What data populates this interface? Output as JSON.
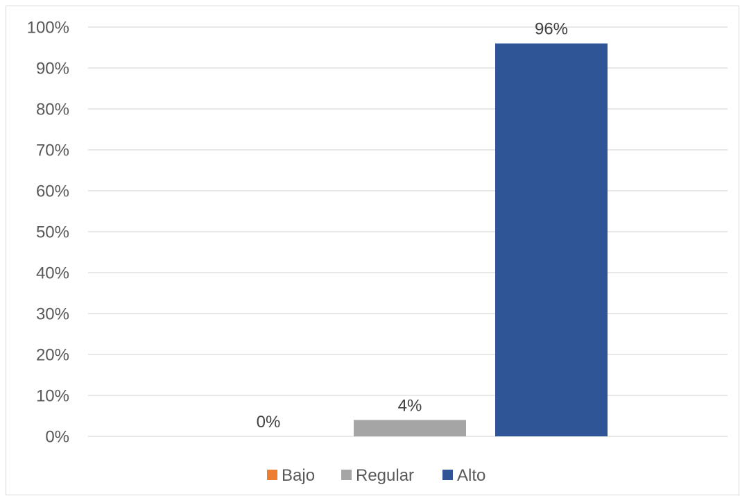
{
  "chart_data": {
    "type": "bar",
    "title": "",
    "xlabel": "",
    "ylabel": "",
    "ylim": [
      0,
      100
    ],
    "y_ticks": [
      "0%",
      "10%",
      "20%",
      "30%",
      "40%",
      "50%",
      "60%",
      "70%",
      "80%",
      "90%",
      "100%"
    ],
    "y_tick_values": [
      0,
      10,
      20,
      30,
      40,
      50,
      60,
      70,
      80,
      90,
      100
    ],
    "grid": true,
    "legend_position": "bottom",
    "series": [
      {
        "name": "Bajo",
        "value": 0,
        "label": "0%",
        "color": "#ED7D31"
      },
      {
        "name": "Regular",
        "value": 4,
        "label": "4%",
        "color": "#A5A5A5"
      },
      {
        "name": "Alto",
        "value": 96,
        "label": "96%",
        "color": "#2F5597"
      }
    ]
  }
}
